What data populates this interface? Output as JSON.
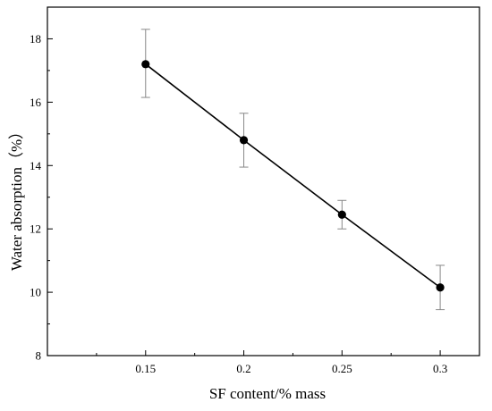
{
  "chart_data": {
    "type": "line",
    "xlabel": "SF content/% mass",
    "ylabel": "Water absorption（%）",
    "xlim": [
      0.1,
      0.32
    ],
    "ylim": [
      8,
      19
    ],
    "x_ticks": [
      0.15,
      0.2,
      0.25,
      0.3
    ],
    "x_tick_labels": [
      "0.15",
      "0.2",
      "0.25",
      "0.3"
    ],
    "y_ticks": [
      8,
      10,
      12,
      14,
      16,
      18
    ],
    "y_tick_labels": [
      "8",
      "10",
      "12",
      "14",
      "16",
      "18"
    ],
    "grid": false,
    "legend": "none",
    "series": [
      {
        "x": [
          0.15,
          0.2,
          0.25,
          0.3
        ],
        "y": [
          17.2,
          14.8,
          12.45,
          10.15
        ],
        "error_lower": [
          1.05,
          0.85,
          0.45,
          0.7
        ],
        "error_upper": [
          1.1,
          0.85,
          0.45,
          0.7
        ],
        "color": "#000000",
        "error_color": "#888888",
        "marker": "circle"
      }
    ]
  }
}
